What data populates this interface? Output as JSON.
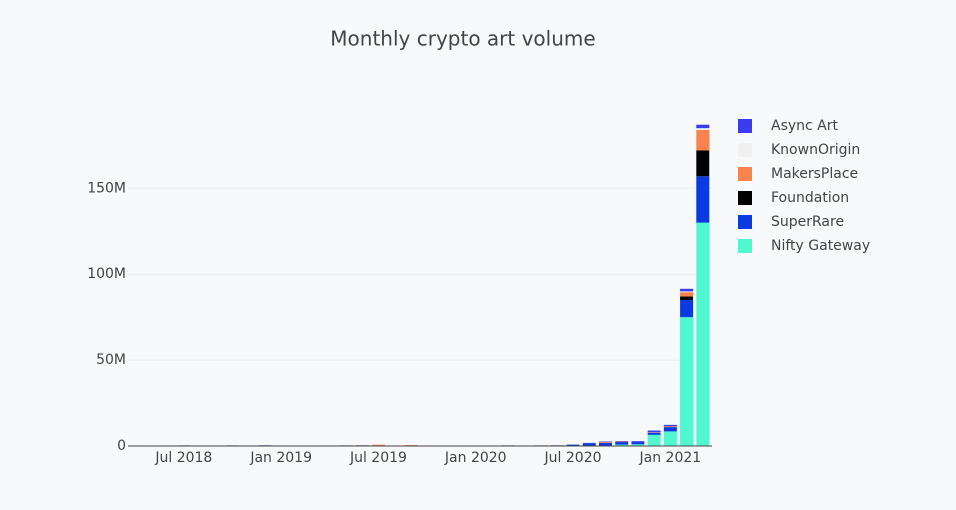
{
  "chart_data": {
    "type": "stacked_bar",
    "title": "Monthly crypto art volume",
    "x": [
      "2018-04",
      "2018-05",
      "2018-06",
      "2018-07",
      "2018-08",
      "2018-09",
      "2018-10",
      "2018-11",
      "2018-12",
      "2019-01",
      "2019-02",
      "2019-03",
      "2019-04",
      "2019-05",
      "2019-06",
      "2019-07",
      "2019-08",
      "2019-09",
      "2019-10",
      "2019-11",
      "2019-12",
      "2020-01",
      "2020-02",
      "2020-03",
      "2020-04",
      "2020-05",
      "2020-06",
      "2020-07",
      "2020-08",
      "2020-09",
      "2020-10",
      "2020-11",
      "2020-12",
      "2021-01",
      "2021-02",
      "2021-03"
    ],
    "series": [
      {
        "name": "Nifty Gateway",
        "color": "#50f7cf",
        "values": [
          0,
          0,
          0,
          0,
          0,
          0,
          0,
          0,
          0,
          0,
          0,
          0,
          0,
          0,
          0,
          0,
          0,
          0,
          0,
          0,
          0,
          0,
          0,
          0,
          0,
          0,
          0,
          0,
          0,
          0,
          800000,
          1000000,
          6500000,
          8500000,
          75000000,
          130000000
        ]
      },
      {
        "name": "SuperRare",
        "color": "#0b3be0",
        "values": [
          300000,
          250000,
          300000,
          350000,
          300000,
          300000,
          350000,
          300000,
          400000,
          300000,
          150000,
          100000,
          300000,
          350000,
          400000,
          350000,
          300000,
          250000,
          300000,
          200000,
          150000,
          200000,
          300000,
          350000,
          300000,
          350000,
          400000,
          800000,
          1500000,
          1800000,
          1500000,
          1300000,
          1200000,
          2500000,
          10000000,
          27000000
        ]
      },
      {
        "name": "Foundation",
        "color": "#000000",
        "values": [
          0,
          0,
          0,
          0,
          0,
          0,
          0,
          0,
          0,
          0,
          0,
          0,
          0,
          0,
          0,
          0,
          0,
          0,
          0,
          0,
          0,
          0,
          0,
          0,
          0,
          0,
          0,
          0,
          0,
          0,
          0,
          0,
          0,
          0,
          2000000,
          15000000
        ]
      },
      {
        "name": "MakersPlace",
        "color": "#f8834f",
        "values": [
          0,
          0,
          0,
          0,
          0,
          0,
          0,
          0,
          0,
          0,
          0,
          0,
          0,
          0,
          0,
          400000,
          0,
          300000,
          0,
          0,
          0,
          0,
          0,
          0,
          0,
          0,
          0,
          0,
          0,
          500000,
          300000,
          0,
          300000,
          500000,
          2500000,
          12000000
        ]
      },
      {
        "name": "KnownOrigin",
        "color": "#f0f0f0",
        "values": [
          0,
          0,
          0,
          0,
          0,
          0,
          0,
          0,
          0,
          0,
          0,
          0,
          0,
          0,
          0,
          0,
          0,
          0,
          0,
          0,
          0,
          0,
          0,
          0,
          0,
          0,
          0,
          0,
          0,
          0,
          0,
          0,
          0,
          0,
          500000,
          1000000
        ]
      },
      {
        "name": "Async Art",
        "color": "#3b3bef",
        "values": [
          0,
          0,
          0,
          0,
          0,
          0,
          0,
          0,
          0,
          0,
          0,
          0,
          0,
          0,
          0,
          0,
          0,
          0,
          0,
          0,
          0,
          0,
          0,
          0,
          0,
          0,
          0,
          0,
          300000,
          300000,
          300000,
          500000,
          1000000,
          800000,
          1500000,
          2000000
        ]
      }
    ],
    "xlim": [
      "2018-03",
      "2021-04"
    ],
    "xticks": [
      {
        "value": "2018-07",
        "label": "Jul 2018"
      },
      {
        "value": "2019-01",
        "label": "Jan 2019"
      },
      {
        "value": "2019-07",
        "label": "Jul 2019"
      },
      {
        "value": "2020-01",
        "label": "Jan 2020"
      },
      {
        "value": "2020-07",
        "label": "Jul 2020"
      },
      {
        "value": "2021-01",
        "label": "Jan 2021"
      }
    ],
    "ylim": [
      0,
      188000000
    ],
    "yticks": [
      0,
      {
        "value": 50000000,
        "label": "50M"
      },
      {
        "value": 100000000,
        "label": "100M"
      },
      {
        "value": 150000000,
        "label": "150M"
      }
    ],
    "grid": true
  }
}
